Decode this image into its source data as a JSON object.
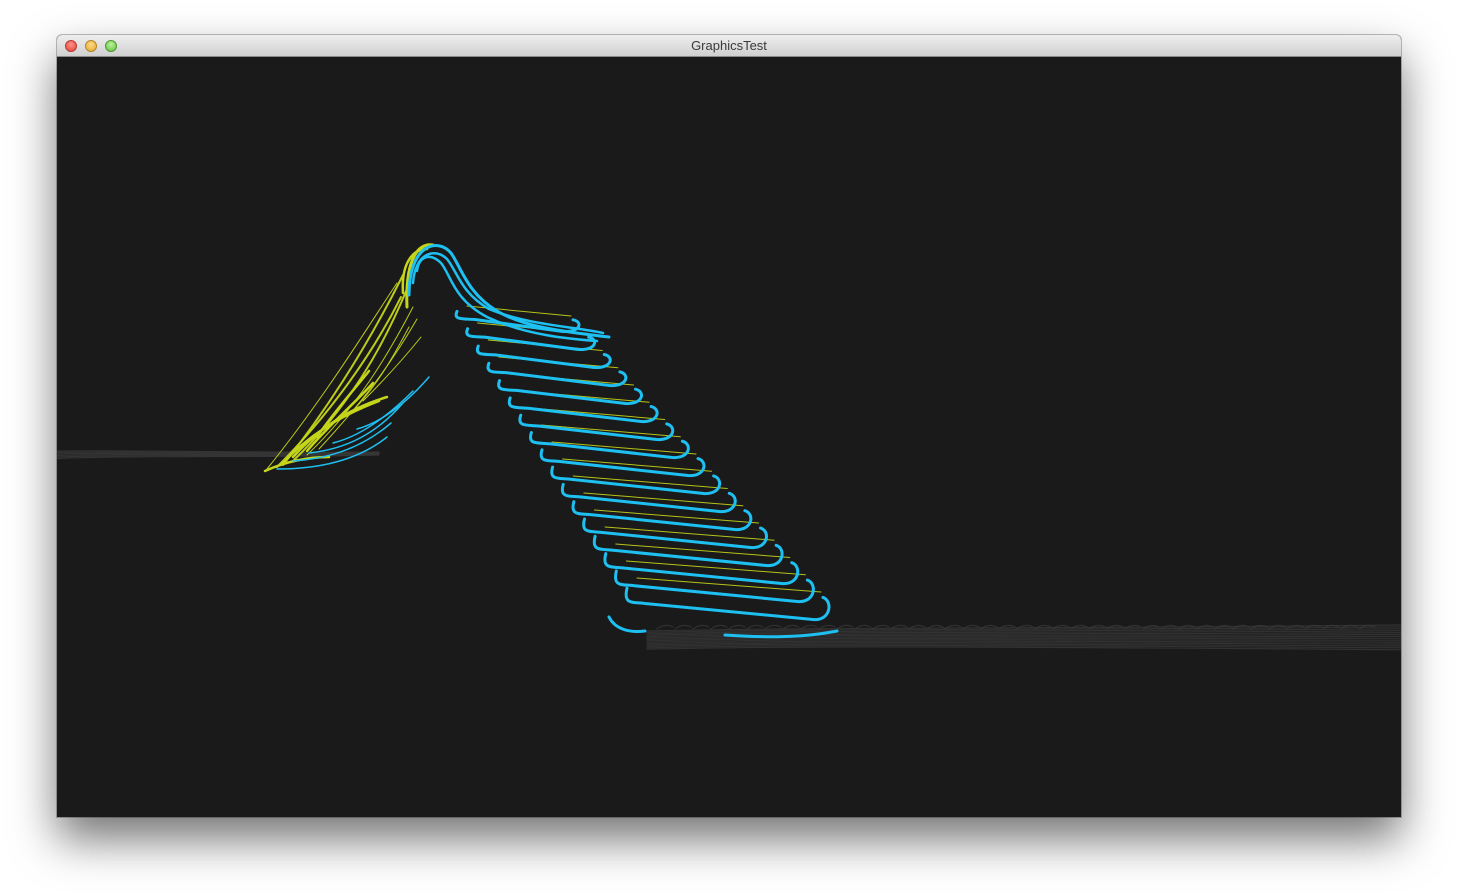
{
  "window": {
    "title": "GraphicsTest"
  },
  "scene": {
    "background_color": "#1a1a1a",
    "ribbon_color_primary": "#1ec0f2",
    "ribbon_color_secondary": "#c5d61a",
    "shadow_color": "#3a3a3a",
    "icons": {
      "close": "close-icon",
      "minimize": "minimize-icon",
      "zoom": "zoom-icon"
    }
  }
}
